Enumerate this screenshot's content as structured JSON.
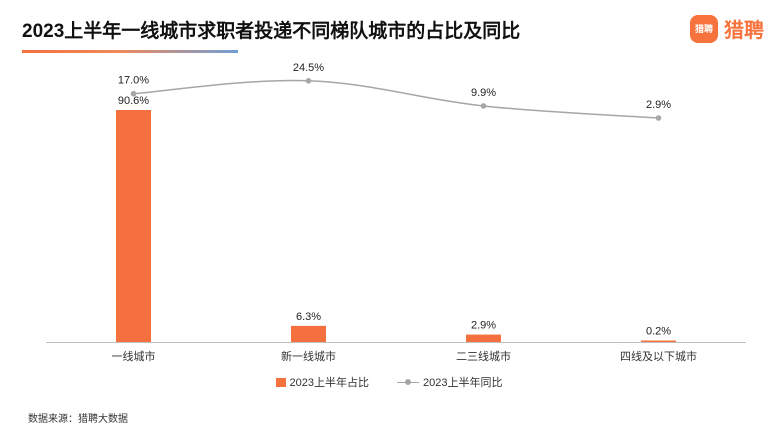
{
  "page": {
    "title": "2023上半年一线城市求职者投递不同梯队城市的占比及同比",
    "source": "数据来源：猎聘大数据"
  },
  "logo": {
    "badge_text": "猎聘",
    "brand_name": "猎聘",
    "color": "#f7733e"
  },
  "chart_data": {
    "type": "bar",
    "title": "2023上半年一线城市求职者投递不同梯队城市的占比及同比",
    "categories": [
      "一线城市",
      "新一线城市",
      "二三线城市",
      "四线及以下城市"
    ],
    "series": [
      {
        "name": "2023上半年占比",
        "type": "bar",
        "values": [
          90.6,
          6.3,
          2.9,
          0.2
        ],
        "labels": [
          "90.6%",
          "6.3%",
          "2.9%",
          "0.2%"
        ],
        "color": "#f4703f",
        "range": [
          0,
          100
        ]
      },
      {
        "name": "2023上半年同比",
        "type": "line",
        "smooth": true,
        "values": [
          17.0,
          24.5,
          9.9,
          2.9
        ],
        "labels": [
          "17.0%",
          "24.5%",
          "9.9%",
          "2.9%"
        ],
        "color": "#a6a6a6",
        "range": [
          0,
          30
        ]
      }
    ],
    "legend_position": "bottom",
    "grid": false
  }
}
